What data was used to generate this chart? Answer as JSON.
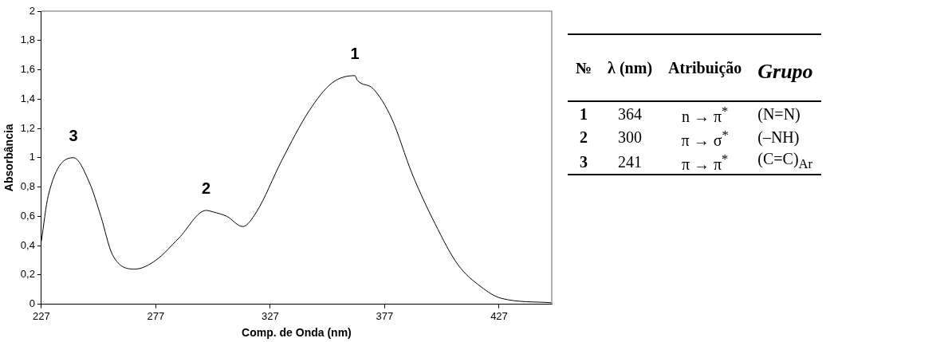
{
  "chart_data": [
    {
      "type": "line",
      "xlabel": "Comp. de Onda (nm)",
      "ylabel": "Absorbância",
      "color": "#000000",
      "grid": false,
      "marker": "none",
      "x": [
        227,
        230,
        241,
        248,
        253,
        258,
        268,
        277,
        287,
        299,
        302,
        308,
        315,
        321,
        332,
        344,
        354,
        364,
        365,
        372,
        380,
        389,
        399,
        409,
        419,
        428,
        450
      ],
      "values": [
        0.43,
        0.74,
        1.0,
        0.83,
        0.6,
        0.34,
        0.24,
        0.3,
        0.45,
        0.64,
        0.63,
        0.6,
        0.53,
        0.63,
        0.98,
        1.32,
        1.51,
        1.56,
        1.53,
        1.47,
        1.27,
        0.89,
        0.55,
        0.27,
        0.12,
        0.04,
        0.01
      ],
      "xlim": [
        227,
        450
      ],
      "xticks": [
        227,
        277,
        327,
        377,
        427
      ],
      "ylim": [
        0,
        2
      ],
      "yticks": [
        0,
        {
          "value": 0.2,
          "label": "0,2"
        },
        {
          "value": 0.4,
          "label": "0,4"
        },
        {
          "value": 0.6,
          "label": "0,6"
        },
        {
          "value": 0.8,
          "label": "0,8"
        },
        1,
        {
          "value": 1.2,
          "label": "1,2"
        },
        {
          "value": 1.4,
          "label": "1,4"
        },
        {
          "value": 1.6,
          "label": "1,6"
        },
        {
          "value": 1.8,
          "label": "1,8"
        },
        2
      ],
      "annotations": [
        {
          "text": "1",
          "x": 364,
          "y": 1.56
        },
        {
          "text": "2",
          "x": 299,
          "y": 0.64
        },
        {
          "text": "3",
          "x": 241,
          "y": 1.0
        }
      ]
    },
    {
      "type": "other",
      "categories": [
        "№",
        "λ (nm)",
        "Atribuição",
        "Grupo"
      ],
      "cell_labels": [
        [
          "1",
          "364",
          "n → π$^{*}$",
          "(N=N)"
        ],
        [
          "2",
          "300",
          "π → σ$^{*}$",
          "(–NH)"
        ],
        [
          "3",
          "241",
          "π → π$^{*}$",
          "(C=C)$_{Ar}$"
        ]
      ]
    }
  ]
}
